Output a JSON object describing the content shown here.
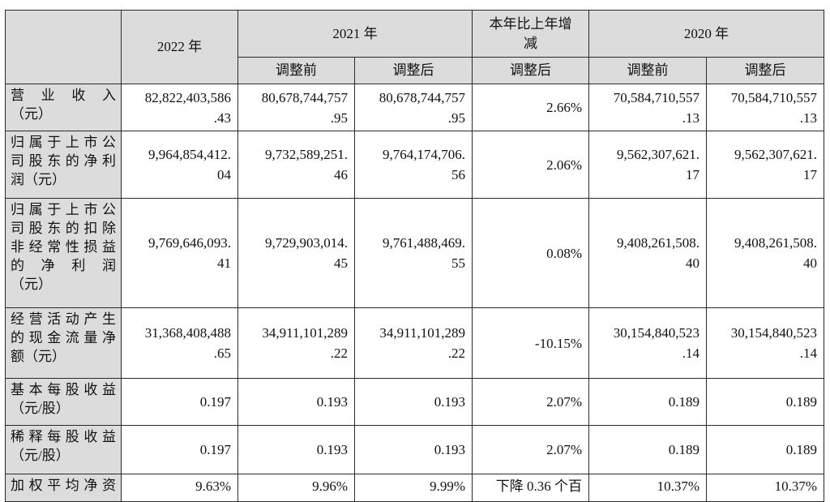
{
  "table": {
    "header": {
      "y2022": "2022 年",
      "y2021": "2021 年",
      "change_line1": "本年比上年增",
      "change_line2": "减",
      "y2020": "2020 年",
      "sub_before": "调整前",
      "sub_after": "调整后",
      "sub_change_after": "调整后",
      "sub_2020_before": "调整前",
      "sub_2020_after": "调整后"
    },
    "rows": [
      {
        "label_lines": [
          "营 业 收 入",
          "（元）"
        ],
        "v2022": [
          "82,822,403,586",
          ".43"
        ],
        "v2021_before": [
          "80,678,744,757",
          ".95"
        ],
        "v2021_after": [
          "80,678,744,757",
          ".95"
        ],
        "change": "2.66%",
        "v2020_before": [
          "70,584,710,557",
          ".13"
        ],
        "v2020_after": [
          "70,584,710,557",
          ".13"
        ]
      },
      {
        "label_lines": [
          "归属于上市公",
          "司股东的净利",
          "润（元）"
        ],
        "v2022": [
          "9,964,854,412.",
          "04"
        ],
        "v2021_before": [
          "9,732,589,251.",
          "46"
        ],
        "v2021_after": [
          "9,764,174,706.",
          "56"
        ],
        "change": "2.06%",
        "v2020_before": [
          "9,562,307,621.",
          "17"
        ],
        "v2020_after": [
          "9,562,307,621.",
          "17"
        ]
      },
      {
        "label_lines": [
          "归属于上市公",
          "司股东的扣除",
          "非经常性损益",
          "的 净 利 润",
          "（元）"
        ],
        "v2022": [
          "9,769,646,093.",
          "41"
        ],
        "v2021_before": [
          "9,729,903,014.",
          "45"
        ],
        "v2021_after": [
          "9,761,488,469.",
          "55"
        ],
        "change": "0.08%",
        "v2020_before": [
          "9,408,261,508.",
          "40"
        ],
        "v2020_after": [
          "9,408,261,508.",
          "40"
        ]
      },
      {
        "label_lines": [
          "经营活动产生",
          "的现金流量净",
          "额（元）"
        ],
        "v2022": [
          "31,368,408,488",
          ".65"
        ],
        "v2021_before": [
          "34,911,101,289",
          ".22"
        ],
        "v2021_after": [
          "34,911,101,289",
          ".22"
        ],
        "change": "-10.15%",
        "v2020_before": [
          "30,154,840,523",
          ".14"
        ],
        "v2020_after": [
          "30,154,840,523",
          ".14"
        ]
      },
      {
        "label_lines": [
          "基本每股收益",
          "（元/股）"
        ],
        "v2022": [
          "0.197"
        ],
        "v2021_before": [
          "0.193"
        ],
        "v2021_after": [
          "0.193"
        ],
        "change": "2.07%",
        "v2020_before": [
          "0.189"
        ],
        "v2020_after": [
          "0.189"
        ]
      },
      {
        "label_lines": [
          "稀释每股收益",
          "（元/股）"
        ],
        "v2022": [
          "0.197"
        ],
        "v2021_before": [
          "0.193"
        ],
        "v2021_after": [
          "0.193"
        ],
        "change": "2.07%",
        "v2020_before": [
          "0.189"
        ],
        "v2020_after": [
          "0.189"
        ]
      },
      {
        "label_lines": [
          "加权平均净资"
        ],
        "v2022": [
          "9.63%"
        ],
        "v2021_before": [
          "9.96%"
        ],
        "v2021_after": [
          "9.99%"
        ],
        "change": "下降 0.36 个百",
        "v2020_before": [
          "10.37%"
        ],
        "v2020_after": [
          "10.37%"
        ]
      }
    ]
  }
}
